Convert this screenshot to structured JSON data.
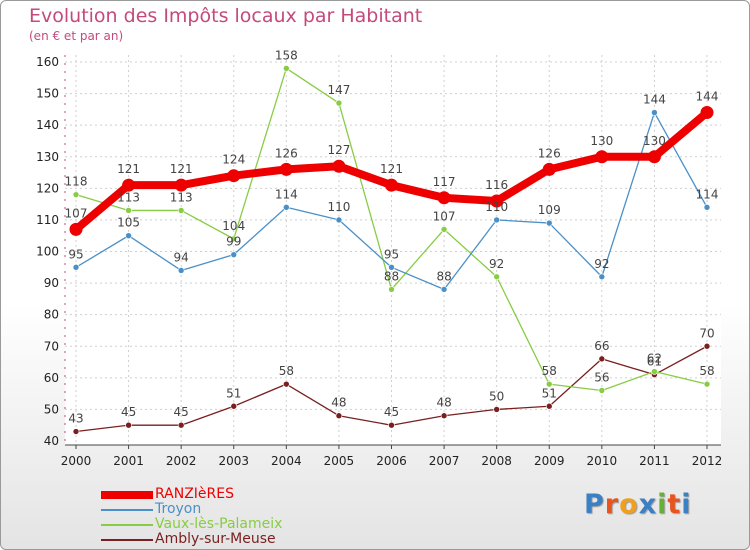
{
  "title": "Evolution des Impôts locaux par Habitant",
  "subtitle": "(en € et par an)",
  "logo": {
    "text": "Proxiti",
    "letter_colors": [
      "#3b7fc4",
      "#e8541e",
      "#f0a020",
      "#3b7fc4",
      "#66b033",
      "#e8541e",
      "#3b7fc4"
    ]
  },
  "chart_data": {
    "type": "line",
    "title": "Evolution des Impôts locaux par Habitant",
    "subtitle": "(en € et par an)",
    "x": [
      "2000",
      "2001",
      "2002",
      "2003",
      "2004",
      "2005",
      "2006",
      "2007",
      "2008",
      "2009",
      "2010",
      "2011",
      "2012"
    ],
    "ylim": [
      40,
      160
    ],
    "yticks": [
      "40",
      "50",
      "60",
      "70",
      "80",
      "90",
      "100",
      "110",
      "120",
      "130",
      "140",
      "150",
      "160"
    ],
    "grid": true,
    "legend_position": "bottom-left",
    "series": [
      {
        "name": "RANZIèRES",
        "color": "#ee0000",
        "values": [
          107,
          121,
          121,
          124,
          126,
          127,
          121,
          117,
          116,
          126,
          130,
          130,
          144
        ],
        "labels": [
          "107",
          "121",
          "121",
          "124",
          "126",
          "127",
          "121",
          "117",
          "116",
          "126",
          "130",
          "130",
          "144"
        ]
      },
      {
        "name": "Troyon",
        "color": "#4a90c8",
        "values": [
          95,
          105,
          94,
          99,
          114,
          110,
          95,
          88,
          110,
          109,
          92,
          144,
          114
        ],
        "labels": [
          "95",
          "105",
          "94",
          "99",
          "114",
          "110",
          "95",
          "88",
          "110",
          "109",
          "92",
          "144",
          "114"
        ]
      },
      {
        "name": "Vaux-lès-Palameix",
        "color": "#88cc44",
        "values": [
          118,
          113,
          113,
          104,
          158,
          147,
          88,
          107,
          92,
          58,
          56,
          62,
          58
        ],
        "labels": [
          "118",
          "113",
          "113",
          "104",
          "158",
          "147",
          "88",
          "107",
          "92",
          "58",
          "56",
          "62",
          "58"
        ]
      },
      {
        "name": "Ambly-sur-Meuse",
        "color": "#7a1f1f",
        "values": [
          43,
          45,
          45,
          51,
          58,
          48,
          45,
          48,
          50,
          51,
          66,
          61,
          70
        ],
        "labels": [
          "43",
          "45",
          "45",
          "51",
          "58",
          "48",
          "45",
          "48",
          "50",
          "51",
          "66",
          "61",
          "70"
        ]
      }
    ]
  }
}
